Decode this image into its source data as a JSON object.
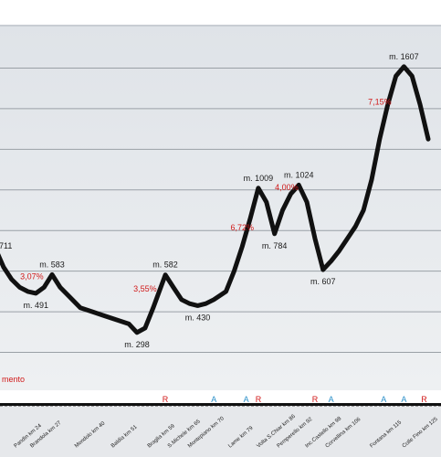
{
  "chart_data": {
    "type": "line",
    "title": "",
    "xlabel": "",
    "ylabel": "",
    "grid": true,
    "xlim": [
      17,
      131
    ],
    "ylim": [
      0,
      1800
    ],
    "series": [
      {
        "values": [
          {
            "x": 17,
            "y": 711
          },
          {
            "x": 19,
            "y": 620
          },
          {
            "x": 21,
            "y": 560
          },
          {
            "x": 23,
            "y": 520
          },
          {
            "x": 25,
            "y": 500
          },
          {
            "x": 27,
            "y": 491
          },
          {
            "x": 29,
            "y": 520
          },
          {
            "x": 31,
            "y": 583
          },
          {
            "x": 33,
            "y": 520
          },
          {
            "x": 35,
            "y": 480
          },
          {
            "x": 38,
            "y": 420
          },
          {
            "x": 41,
            "y": 400
          },
          {
            "x": 44,
            "y": 380
          },
          {
            "x": 47,
            "y": 360
          },
          {
            "x": 50,
            "y": 340
          },
          {
            "x": 52,
            "y": 298
          },
          {
            "x": 54,
            "y": 320
          },
          {
            "x": 56,
            "y": 420
          },
          {
            "x": 59,
            "y": 582
          },
          {
            "x": 61,
            "y": 520
          },
          {
            "x": 63,
            "y": 460
          },
          {
            "x": 65,
            "y": 440
          },
          {
            "x": 67,
            "y": 430
          },
          {
            "x": 69,
            "y": 440
          },
          {
            "x": 71,
            "y": 460
          },
          {
            "x": 74,
            "y": 500
          },
          {
            "x": 76,
            "y": 600
          },
          {
            "x": 78,
            "y": 720
          },
          {
            "x": 80,
            "y": 860
          },
          {
            "x": 82,
            "y": 1009
          },
          {
            "x": 84,
            "y": 940
          },
          {
            "x": 86,
            "y": 784
          },
          {
            "x": 88,
            "y": 900
          },
          {
            "x": 90,
            "y": 980
          },
          {
            "x": 92,
            "y": 1024
          },
          {
            "x": 94,
            "y": 940
          },
          {
            "x": 96,
            "y": 760
          },
          {
            "x": 98,
            "y": 607
          },
          {
            "x": 100,
            "y": 650
          },
          {
            "x": 102,
            "y": 700
          },
          {
            "x": 104,
            "y": 760
          },
          {
            "x": 106,
            "y": 820
          },
          {
            "x": 108,
            "y": 900
          },
          {
            "x": 110,
            "y": 1050
          },
          {
            "x": 112,
            "y": 1250
          },
          {
            "x": 114,
            "y": 1420
          },
          {
            "x": 116,
            "y": 1560
          },
          {
            "x": 118,
            "y": 1607
          },
          {
            "x": 120,
            "y": 1560
          },
          {
            "x": 122,
            "y": 1420
          },
          {
            "x": 124,
            "y": 1250
          }
        ]
      }
    ],
    "elevation_labels": [
      {
        "x": 17,
        "y": 711,
        "label": "711"
      },
      {
        "x": 27,
        "y": 491,
        "label": "m. 491"
      },
      {
        "x": 31,
        "y": 583,
        "label": "m. 583"
      },
      {
        "x": 52,
        "y": 298,
        "label": "m. 298"
      },
      {
        "x": 59,
        "y": 582,
        "label": "m. 582"
      },
      {
        "x": 67,
        "y": 430,
        "label": "m. 430"
      },
      {
        "x": 82,
        "y": 1009,
        "label": "m. 1009"
      },
      {
        "x": 86,
        "y": 784,
        "label": "m. 784"
      },
      {
        "x": 92,
        "y": 1024,
        "label": "m. 1024"
      },
      {
        "x": 98,
        "y": 607,
        "label": "m. 607"
      },
      {
        "x": 118,
        "y": 1607,
        "label": "m. 1607"
      }
    ],
    "gradient_labels": [
      {
        "x": 26,
        "y": 560,
        "label": "3,07%"
      },
      {
        "x": 54,
        "y": 500,
        "label": "3,55%"
      },
      {
        "x": 78,
        "y": 800,
        "label": "6,72%"
      },
      {
        "x": 89,
        "y": 1000,
        "label": "4,00%"
      },
      {
        "x": 112,
        "y": 1420,
        "label": "7,15%"
      }
    ],
    "x_ticks": [
      {
        "x": 22,
        "label": "Pandìn km 24"
      },
      {
        "x": 26,
        "label": "Brandola km 27"
      },
      {
        "x": 37,
        "label": "Mondolo km 40"
      },
      {
        "x": 46,
        "label": "Baldìa km 51"
      },
      {
        "x": 55,
        "label": "Braglia km 59"
      },
      {
        "x": 60,
        "label": "S.Michele km 65"
      },
      {
        "x": 65,
        "label": "Montepiano km 70"
      },
      {
        "x": 75,
        "label": "Lame km 79"
      },
      {
        "x": 82,
        "label": "Volta S.Chiar km 86"
      },
      {
        "x": 87,
        "label": "Pemperello km 92"
      },
      {
        "x": 94,
        "label": "Inc.Castello km 98"
      },
      {
        "x": 99,
        "label": "Corvellina km 106"
      },
      {
        "x": 110,
        "label": "Fontana km 115"
      },
      {
        "x": 118,
        "label": "Colle Fino km 125"
      }
    ],
    "markers": [
      {
        "x": 59,
        "label": "R",
        "color": "#d11a1a"
      },
      {
        "x": 71,
        "label": "A",
        "color": "#2a8fc8"
      },
      {
        "x": 79,
        "label": "A",
        "color": "#2a8fc8"
      },
      {
        "x": 82,
        "label": "R",
        "color": "#d11a1a"
      },
      {
        "x": 96,
        "label": "R",
        "color": "#d11a1a"
      },
      {
        "x": 100,
        "label": "A",
        "color": "#2a8fc8"
      },
      {
        "x": 113,
        "label": "A",
        "color": "#2a8fc8"
      },
      {
        "x": 118,
        "label": "A",
        "color": "#2a8fc8"
      },
      {
        "x": 123,
        "label": "R",
        "color": "#d11a1a"
      }
    ],
    "note": "mento"
  }
}
